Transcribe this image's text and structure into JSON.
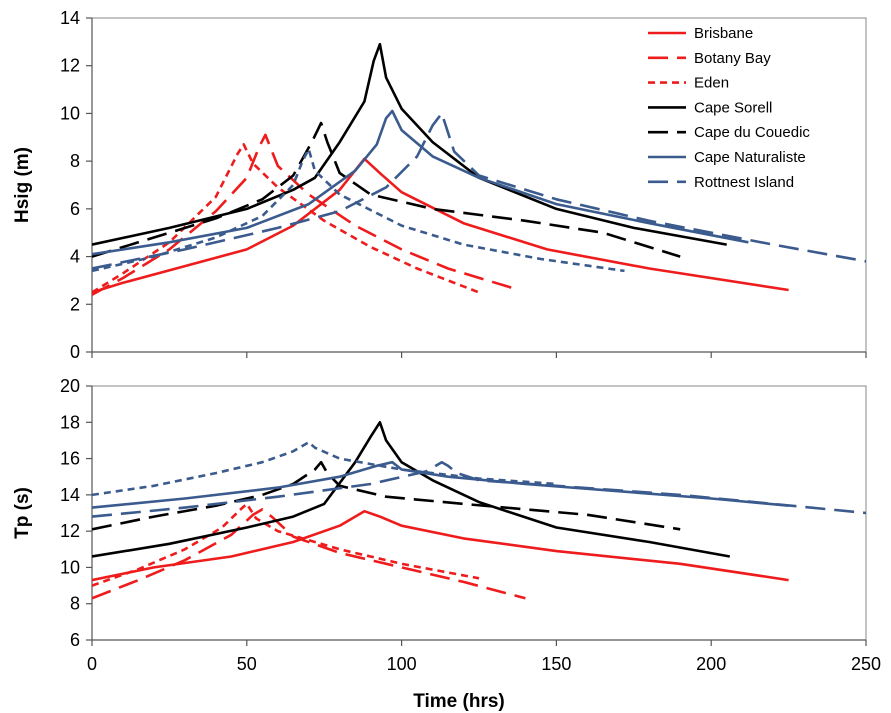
{
  "chart_data": [
    {
      "type": "line",
      "ylabel": "Hsig (m)",
      "xlabel": "",
      "xlim": [
        0,
        250
      ],
      "ylim": [
        0,
        14
      ],
      "yticks": [
        "0",
        "2",
        "4",
        "6",
        "8",
        "10",
        "12",
        "14"
      ],
      "xticks": [],
      "grid": false,
      "legend": "top-right",
      "series": [
        {
          "name": "Brisbane",
          "color": "#ee1c1c",
          "dash": "solid",
          "x": [
            0,
            10,
            30,
            50,
            65,
            80,
            88,
            93,
            100,
            120,
            147,
            180,
            225
          ],
          "y": [
            2.5,
            2.9,
            3.6,
            4.3,
            5.3,
            6.8,
            8.1,
            7.5,
            6.7,
            5.4,
            4.3,
            3.5,
            2.6
          ]
        },
        {
          "name": "Botany Bay",
          "color": "#ee1c1c",
          "dash": "long",
          "x": [
            0,
            10,
            25,
            40,
            50,
            54,
            56,
            60,
            70,
            85,
            100,
            115,
            138
          ],
          "y": [
            2.4,
            3.1,
            4.3,
            5.9,
            7.3,
            8.6,
            9.1,
            7.8,
            6.6,
            5.3,
            4.3,
            3.5,
            2.6
          ]
        },
        {
          "name": "Eden",
          "color": "#ee1c1c",
          "dash": "short",
          "x": [
            0,
            10,
            25,
            40,
            47,
            49,
            52,
            60,
            75,
            90,
            105,
            125
          ],
          "y": [
            2.5,
            3.3,
            4.6,
            6.5,
            8.3,
            8.7,
            7.9,
            6.9,
            5.5,
            4.4,
            3.5,
            2.5
          ]
        },
        {
          "name": "Cape Sorell",
          "color": "#000000",
          "dash": "solid",
          "x": [
            0,
            25,
            50,
            65,
            72,
            80,
            88,
            91,
            93,
            95,
            100,
            110,
            125,
            150,
            175,
            205
          ],
          "y": [
            4.5,
            5.2,
            6.0,
            6.8,
            7.3,
            8.8,
            10.5,
            12.2,
            12.9,
            11.5,
            10.2,
            8.8,
            7.3,
            6.0,
            5.2,
            4.5
          ]
        },
        {
          "name": "Cape du Couedic",
          "color": "#000000",
          "dash": "long",
          "x": [
            0,
            20,
            40,
            55,
            65,
            71,
            74,
            76,
            80,
            90,
            110,
            140,
            165,
            190
          ],
          "y": [
            4.0,
            4.8,
            5.6,
            6.4,
            7.4,
            8.8,
            9.6,
            8.8,
            7.5,
            6.6,
            6.0,
            5.5,
            5.0,
            4.0
          ]
        },
        {
          "name": "Cape Naturaliste",
          "color": "#3b5b8e",
          "dash": "solid",
          "x": [
            0,
            25,
            50,
            70,
            85,
            92,
            95,
            97,
            100,
            110,
            125,
            150,
            180,
            212
          ],
          "y": [
            4.1,
            4.6,
            5.2,
            6.2,
            7.6,
            8.7,
            9.8,
            10.1,
            9.3,
            8.2,
            7.3,
            6.2,
            5.4,
            4.6
          ]
        },
        {
          "name": "Rottnest Island",
          "color": "#3b5b8e",
          "dash": "long",
          "x": [
            0,
            30,
            60,
            80,
            95,
            105,
            110,
            113,
            115,
            117,
            125,
            150,
            180,
            220,
            250
          ],
          "y": [
            3.5,
            4.3,
            5.2,
            5.9,
            6.9,
            8.2,
            9.5,
            10.0,
            9.2,
            8.4,
            7.4,
            6.4,
            5.5,
            4.5,
            3.8
          ]
        },
        {
          "name": "",
          "color": "#3b5b8e",
          "dash": "short",
          "x": [
            0,
            20,
            40,
            55,
            65,
            68,
            70,
            72,
            80,
            100,
            120,
            145,
            172
          ],
          "y": [
            3.4,
            4.0,
            4.8,
            5.7,
            7.0,
            8.0,
            8.5,
            7.6,
            6.6,
            5.3,
            4.5,
            3.9,
            3.4
          ]
        }
      ]
    },
    {
      "type": "line",
      "ylabel": "Tp (s)",
      "xlabel": "Time (hrs)",
      "xlim": [
        0,
        250
      ],
      "ylim": [
        6,
        20
      ],
      "yticks": [
        "6",
        "8",
        "10",
        "12",
        "14",
        "16",
        "18",
        "20"
      ],
      "xticks": [
        "0",
        "50",
        "100",
        "150",
        "200",
        "250"
      ],
      "grid": false,
      "series": [
        {
          "name": "Brisbane",
          "color": "#ee1c1c",
          "dash": "solid",
          "x": [
            0,
            20,
            45,
            65,
            80,
            88,
            93,
            100,
            120,
            150,
            190,
            225
          ],
          "y": [
            9.3,
            10.0,
            10.6,
            11.4,
            12.3,
            13.1,
            12.8,
            12.3,
            11.6,
            10.9,
            10.2,
            9.3
          ]
        },
        {
          "name": "Botany Bay",
          "color": "#ee1c1c",
          "dash": "long",
          "x": [
            0,
            15,
            30,
            45,
            52,
            55,
            58,
            65,
            80,
            100,
            120,
            140
          ],
          "y": [
            8.3,
            9.3,
            10.4,
            11.8,
            12.9,
            13.2,
            12.8,
            11.7,
            10.8,
            10.0,
            9.2,
            8.3
          ]
        },
        {
          "name": "Eden",
          "color": "#ee1c1c",
          "dash": "short",
          "x": [
            0,
            15,
            30,
            42,
            48,
            50,
            53,
            60,
            80,
            100,
            125
          ],
          "y": [
            9.0,
            9.9,
            11.0,
            12.2,
            13.2,
            13.5,
            12.7,
            12.0,
            11.0,
            10.2,
            9.4
          ]
        },
        {
          "name": "Cape Sorell",
          "color": "#000000",
          "dash": "solid",
          "x": [
            0,
            25,
            50,
            65,
            75,
            85,
            90,
            93,
            95,
            100,
            110,
            125,
            150,
            180,
            206
          ],
          "y": [
            10.6,
            11.3,
            12.2,
            12.8,
            13.5,
            15.8,
            17.2,
            18.0,
            17.0,
            15.8,
            14.8,
            13.6,
            12.2,
            11.4,
            10.6
          ]
        },
        {
          "name": "Cape du Couedic",
          "color": "#000000",
          "dash": "long",
          "x": [
            0,
            20,
            40,
            55,
            65,
            72,
            74,
            76,
            80,
            95,
            120,
            160,
            190
          ],
          "y": [
            12.1,
            12.8,
            13.4,
            14.0,
            14.6,
            15.4,
            15.8,
            15.2,
            14.5,
            13.9,
            13.5,
            12.9,
            12.1
          ]
        },
        {
          "name": "Cape Naturaliste",
          "color": "#3b5b8e",
          "dash": "solid",
          "x": [
            0,
            30,
            60,
            80,
            92,
            97,
            100,
            115,
            140,
            170,
            200,
            225
          ],
          "y": [
            13.3,
            13.8,
            14.4,
            15.0,
            15.6,
            15.8,
            15.4,
            15.0,
            14.6,
            14.2,
            13.8,
            13.4
          ]
        },
        {
          "name": "Rottnest Island",
          "color": "#3b5b8e",
          "dash": "long",
          "x": [
            0,
            30,
            60,
            90,
            108,
            113,
            115,
            118,
            125,
            150,
            190,
            220,
            250
          ],
          "y": [
            12.8,
            13.3,
            13.9,
            14.6,
            15.3,
            15.8,
            15.6,
            15.2,
            14.8,
            14.5,
            14.0,
            13.5,
            13.0
          ]
        },
        {
          "name": "",
          "color": "#3b5b8e",
          "dash": "short",
          "x": [
            0,
            20,
            40,
            55,
            65,
            69,
            70,
            72,
            80,
            100,
            125,
            150
          ],
          "y": [
            14.0,
            14.5,
            15.2,
            15.8,
            16.4,
            16.8,
            16.9,
            16.6,
            16.0,
            15.4,
            14.9,
            14.6
          ]
        }
      ]
    }
  ]
}
